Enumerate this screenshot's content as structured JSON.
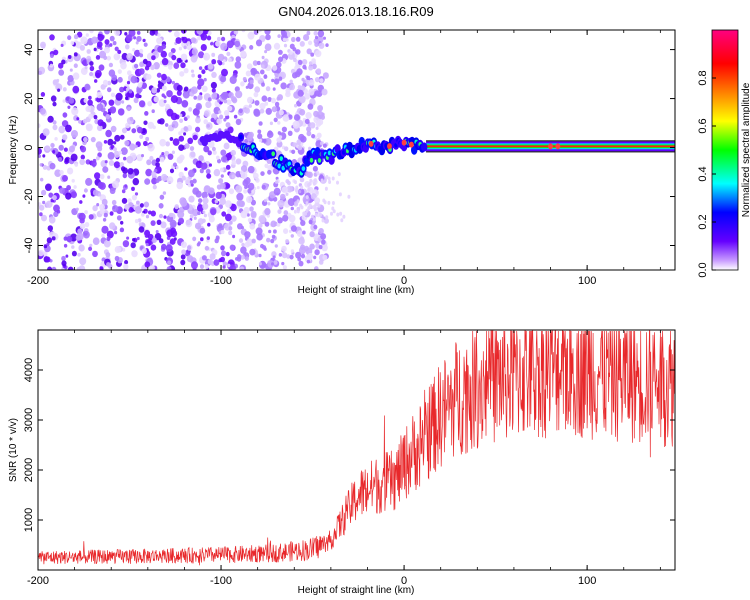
{
  "figure": {
    "title": "GN04.2026.013.18.16.R09"
  },
  "colors": {
    "snr_line": "#e8282b",
    "frame": "#000000",
    "trace_line": "#000000",
    "background": "#ffffff"
  },
  "chart_data": [
    {
      "type": "heatmap",
      "id": "spectrogram",
      "title": "",
      "xlabel": "Height of straight line (km)",
      "ylabel": "Frequency (Hz)",
      "xlim": [
        -200,
        148
      ],
      "ylim": [
        -50,
        48
      ],
      "xticks": [
        -200,
        -100,
        0,
        100
      ],
      "yticks": [
        -40,
        -20,
        0,
        20,
        40
      ],
      "colorbar": {
        "label": "Normalized spectral amplitude",
        "range": [
          0,
          1
        ],
        "ticks": [
          "0.0",
          "0.2",
          "0.4",
          "0.6",
          "0.8"
        ],
        "colormap": [
          "#ffffff",
          "#c89bff",
          "#6400ff",
          "#0000ff",
          "#00ffff",
          "#00ff00",
          "#ffff00",
          "#ff8000",
          "#ff0000",
          "#ff0080"
        ]
      },
      "noise_region": {
        "x_start": -200,
        "x_end": -50,
        "amplitude": "0.1-0.3"
      },
      "carrier_trace": [
        {
          "x": -110,
          "f": 2
        },
        {
          "x": -100,
          "f": 4
        },
        {
          "x": -90,
          "f": 3
        },
        {
          "x": -80,
          "f": -2
        },
        {
          "x": -72,
          "f": -4
        },
        {
          "x": -65,
          "f": -7
        },
        {
          "x": -57,
          "f": -10
        },
        {
          "x": -50,
          "f": -3
        },
        {
          "x": -42,
          "f": -4
        },
        {
          "x": -35,
          "f": -2
        },
        {
          "x": -28,
          "f": -1
        },
        {
          "x": -20,
          "f": 2
        },
        {
          "x": -12,
          "f": 0
        },
        {
          "x": -5,
          "f": 1
        },
        {
          "x": 0,
          "f": 2
        },
        {
          "x": 5,
          "f": 1
        },
        {
          "x": 10,
          "f": 0.5
        },
        {
          "x": 148,
          "f": 0.5
        }
      ]
    },
    {
      "type": "line",
      "id": "snr",
      "title": "",
      "xlabel": "Height of straight line (km)",
      "ylabel": "SNR (10 * v/v)",
      "xlim": [
        -200,
        148
      ],
      "ylim": [
        0,
        4800
      ],
      "xticks": [
        -200,
        -100,
        0,
        100
      ],
      "yticks": [
        1000,
        2000,
        3000,
        4000
      ],
      "envelope": [
        {
          "x": -200,
          "y": 250
        },
        {
          "x": -150,
          "y": 270
        },
        {
          "x": -100,
          "y": 300
        },
        {
          "x": -70,
          "y": 340
        },
        {
          "x": -50,
          "y": 420
        },
        {
          "x": -40,
          "y": 600
        },
        {
          "x": -32,
          "y": 1100
        },
        {
          "x": -25,
          "y": 1500
        },
        {
          "x": -15,
          "y": 1700
        },
        {
          "x": -5,
          "y": 1800
        },
        {
          "x": 0,
          "y": 2100
        },
        {
          "x": 10,
          "y": 2600
        },
        {
          "x": 20,
          "y": 3100
        },
        {
          "x": 30,
          "y": 3500
        },
        {
          "x": 45,
          "y": 3800
        },
        {
          "x": 65,
          "y": 3950
        },
        {
          "x": 85,
          "y": 4100
        },
        {
          "x": 110,
          "y": 3950
        },
        {
          "x": 130,
          "y": 3850
        },
        {
          "x": 148,
          "y": 3750
        }
      ],
      "noise_amplitude_fraction": 0.35,
      "sample_step": 0.25
    }
  ]
}
